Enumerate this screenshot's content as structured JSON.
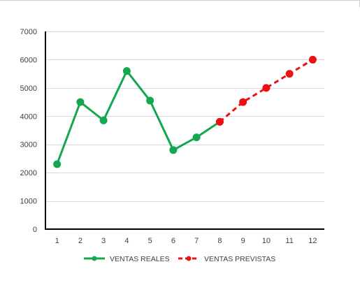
{
  "chart_data": {
    "type": "line",
    "title": "",
    "xlabel": "",
    "ylabel": "",
    "x": [
      1,
      2,
      3,
      4,
      5,
      6,
      7,
      8,
      9,
      10,
      11,
      12
    ],
    "xlim": [
      0.5,
      12.5
    ],
    "ylim": [
      0,
      7000
    ],
    "yticks": [
      0,
      1000,
      2000,
      3000,
      4000,
      5000,
      6000,
      7000
    ],
    "grid": true,
    "legend_position": "bottom",
    "series": [
      {
        "name": "VENTAS REALES",
        "color": "#13a850",
        "dash": "solid",
        "points": [
          {
            "x": 1,
            "y": 2300
          },
          {
            "x": 2,
            "y": 4500
          },
          {
            "x": 3,
            "y": 3850
          },
          {
            "x": 4,
            "y": 5600
          },
          {
            "x": 5,
            "y": 4550
          },
          {
            "x": 6,
            "y": 2800
          },
          {
            "x": 7,
            "y": 3250
          },
          {
            "x": 8,
            "y": 3800
          }
        ]
      },
      {
        "name": "VENTAS PREVISTAS",
        "color": "#ee1111",
        "dash": "dashed",
        "points": [
          {
            "x": 8,
            "y": 3800
          },
          {
            "x": 9,
            "y": 4500
          },
          {
            "x": 10,
            "y": 5000
          },
          {
            "x": 11,
            "y": 5500
          },
          {
            "x": 12,
            "y": 6000
          }
        ]
      }
    ]
  }
}
